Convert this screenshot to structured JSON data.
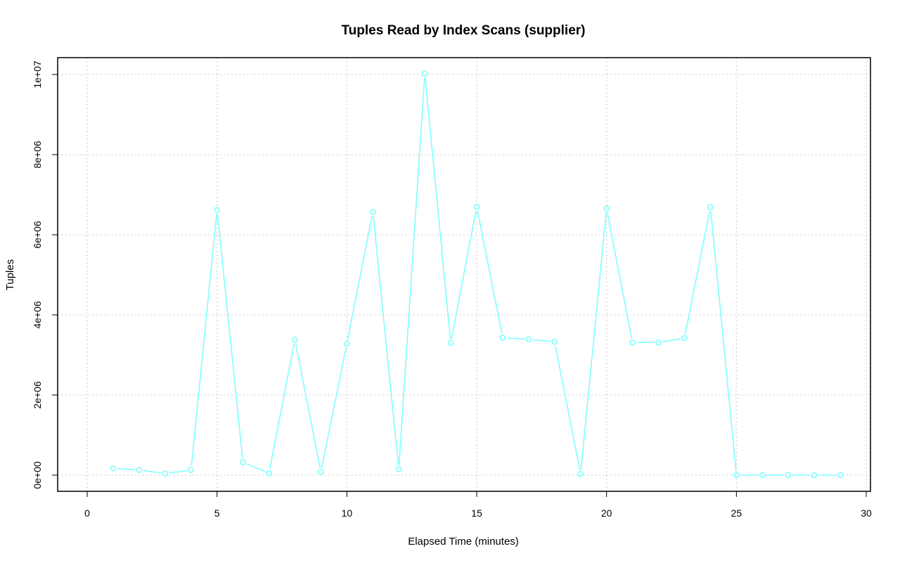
{
  "chart_data": {
    "type": "line",
    "title": "Tuples Read by Index Scans (supplier)",
    "xlabel": "Elapsed Time (minutes)",
    "ylabel": "Tuples",
    "xlim": [
      0,
      30
    ],
    "ylim": [
      0,
      10000000
    ],
    "x_ticks": [
      0,
      5,
      10,
      15,
      20,
      25,
      30
    ],
    "x_tick_labels": [
      "0",
      "5",
      "10",
      "15",
      "20",
      "25",
      "30"
    ],
    "y_ticks": [
      0,
      2000000,
      4000000,
      6000000,
      8000000,
      10000000
    ],
    "y_tick_labels": [
      "0e+00",
      "2e+06",
      "4e+06",
      "6e+06",
      "8e+06",
      "1e+07"
    ],
    "grid": true,
    "series": [
      {
        "color": "#7FFFFF",
        "x": [
          1,
          2,
          3,
          4,
          5,
          6,
          7,
          8,
          9,
          10,
          11,
          12,
          13,
          14,
          15,
          16,
          17,
          18,
          19,
          20,
          21,
          22,
          23,
          24,
          25,
          26,
          27,
          28,
          29
        ],
        "y": [
          170000,
          130000,
          40000,
          130000,
          6620000,
          320000,
          50000,
          3380000,
          80000,
          3280000,
          6570000,
          150000,
          10020000,
          3300000,
          6700000,
          3430000,
          3390000,
          3330000,
          30000,
          6650000,
          3310000,
          3310000,
          3420000,
          6690000,
          0,
          0,
          0,
          0,
          0
        ]
      }
    ]
  }
}
